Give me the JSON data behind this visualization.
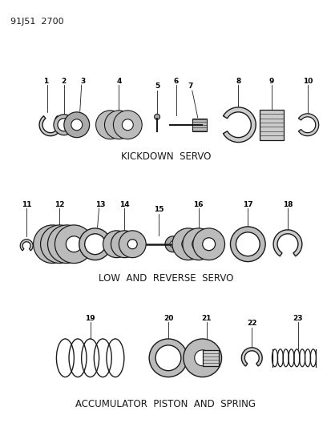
{
  "title_code": "91J51  2700",
  "background_color": "#ffffff",
  "line_color": "#1a1a1a",
  "section1_label": "KICKDOWN  SERVO",
  "section2_label": "LOW  AND  REVERSE  SERVO",
  "section3_label": "ACCUMULATOR  PISTON  AND  SPRING",
  "fig_width": 4.14,
  "fig_height": 5.33,
  "dpi": 100
}
